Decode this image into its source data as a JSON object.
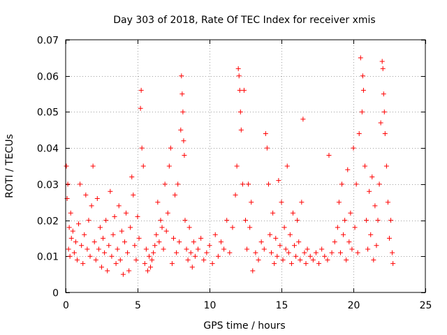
{
  "chart_data": {
    "type": "scatter",
    "title": "Day 303 of 2018, Rate Of TEC Index for receiver xmis",
    "xlabel": "GPS time / hours",
    "ylabel": "ROTI / TECUs",
    "xlim": [
      0,
      25
    ],
    "ylim": [
      0,
      0.07
    ],
    "xticks": [
      0,
      5,
      10,
      15,
      20,
      25
    ],
    "xtick_labels": [
      "0",
      "5",
      "10",
      "15",
      "20",
      "25"
    ],
    "yticks": [
      0,
      0.01,
      0.02,
      0.03,
      0.04,
      0.05,
      0.06,
      0.07
    ],
    "ytick_labels": [
      "0",
      "0.01",
      "0.02",
      "0.03",
      "0.04",
      "0.05",
      "0.06",
      "0.07"
    ],
    "grid": true,
    "marker": "plus",
    "color": "#ff0000",
    "series": [
      {
        "points": [
          [
            0.05,
            0.035
          ],
          [
            0.1,
            0.026
          ],
          [
            0.15,
            0.03
          ],
          [
            0.2,
            0.012
          ],
          [
            0.25,
            0.018
          ],
          [
            0.3,
            0.01
          ],
          [
            0.35,
            0.022
          ],
          [
            0.4,
            0.015
          ],
          [
            0.5,
            0.017
          ],
          [
            0.6,
            0.011
          ],
          [
            0.7,
            0.014
          ],
          [
            0.8,
            0.009
          ],
          [
            0.9,
            0.019
          ],
          [
            1.0,
            0.03
          ],
          [
            1.1,
            0.013
          ],
          [
            1.2,
            0.008
          ],
          [
            1.3,
            0.016
          ],
          [
            1.4,
            0.027
          ],
          [
            1.5,
            0.012
          ],
          [
            1.6,
            0.02
          ],
          [
            1.7,
            0.01
          ],
          [
            1.8,
            0.024
          ],
          [
            1.9,
            0.035
          ],
          [
            2.0,
            0.014
          ],
          [
            2.1,
            0.009
          ],
          [
            2.2,
            0.026
          ],
          [
            2.3,
            0.012
          ],
          [
            2.4,
            0.018
          ],
          [
            2.5,
            0.007
          ],
          [
            2.6,
            0.015
          ],
          [
            2.7,
            0.011
          ],
          [
            2.8,
            0.02
          ],
          [
            2.9,
            0.006
          ],
          [
            3.0,
            0.013
          ],
          [
            3.1,
            0.028
          ],
          [
            3.2,
            0.01
          ],
          [
            3.3,
            0.016
          ],
          [
            3.4,
            0.021
          ],
          [
            3.5,
            0.008
          ],
          [
            3.6,
            0.012
          ],
          [
            3.7,
            0.024
          ],
          [
            3.8,
            0.009
          ],
          [
            3.9,
            0.017
          ],
          [
            4.0,
            0.005
          ],
          [
            4.1,
            0.014
          ],
          [
            4.2,
            0.022
          ],
          [
            4.3,
            0.011
          ],
          [
            4.4,
            0.006
          ],
          [
            4.5,
            0.018
          ],
          [
            4.6,
            0.032
          ],
          [
            4.7,
            0.027
          ],
          [
            4.8,
            0.013
          ],
          [
            4.9,
            0.009
          ],
          [
            5.0,
            0.021
          ],
          [
            5.1,
            0.015
          ],
          [
            5.2,
            0.051
          ],
          [
            5.25,
            0.056
          ],
          [
            5.3,
            0.04
          ],
          [
            5.4,
            0.035
          ],
          [
            5.5,
            0.008
          ],
          [
            5.6,
            0.012
          ],
          [
            5.7,
            0.006
          ],
          [
            5.8,
            0.01
          ],
          [
            5.9,
            0.007
          ],
          [
            6.0,
            0.009
          ],
          [
            6.1,
            0.011
          ],
          [
            6.2,
            0.013
          ],
          [
            6.3,
            0.016
          ],
          [
            6.4,
            0.025
          ],
          [
            6.5,
            0.014
          ],
          [
            6.6,
            0.02
          ],
          [
            6.7,
            0.018
          ],
          [
            6.8,
            0.012
          ],
          [
            6.9,
            0.03
          ],
          [
            7.0,
            0.017
          ],
          [
            7.1,
            0.022
          ],
          [
            7.2,
            0.035
          ],
          [
            7.3,
            0.04
          ],
          [
            7.4,
            0.008
          ],
          [
            7.5,
            0.015
          ],
          [
            7.6,
            0.027
          ],
          [
            7.7,
            0.011
          ],
          [
            7.8,
            0.03
          ],
          [
            7.9,
            0.014
          ],
          [
            8.0,
            0.045
          ],
          [
            8.05,
            0.06
          ],
          [
            8.1,
            0.055
          ],
          [
            8.15,
            0.05
          ],
          [
            8.2,
            0.042
          ],
          [
            8.25,
            0.038
          ],
          [
            8.3,
            0.02
          ],
          [
            8.4,
            0.012
          ],
          [
            8.5,
            0.009
          ],
          [
            8.6,
            0.018
          ],
          [
            8.7,
            0.011
          ],
          [
            8.8,
            0.007
          ],
          [
            8.9,
            0.014
          ],
          [
            9.0,
            0.01
          ],
          [
            9.2,
            0.012
          ],
          [
            9.4,
            0.015
          ],
          [
            9.6,
            0.009
          ],
          [
            9.8,
            0.011
          ],
          [
            10.0,
            0.013
          ],
          [
            10.2,
            0.008
          ],
          [
            10.4,
            0.016
          ],
          [
            10.6,
            0.01
          ],
          [
            10.8,
            0.014
          ],
          [
            11.0,
            0.012
          ],
          [
            11.2,
            0.02
          ],
          [
            11.4,
            0.011
          ],
          [
            11.6,
            0.018
          ],
          [
            11.8,
            0.027
          ],
          [
            11.9,
            0.035
          ],
          [
            12.0,
            0.062
          ],
          [
            12.05,
            0.06
          ],
          [
            12.1,
            0.056
          ],
          [
            12.15,
            0.05
          ],
          [
            12.2,
            0.045
          ],
          [
            12.3,
            0.03
          ],
          [
            12.4,
            0.056
          ],
          [
            12.5,
            0.02
          ],
          [
            12.6,
            0.012
          ],
          [
            12.7,
            0.03
          ],
          [
            12.8,
            0.018
          ],
          [
            12.9,
            0.025
          ],
          [
            13.0,
            0.006
          ],
          [
            13.2,
            0.011
          ],
          [
            13.4,
            0.009
          ],
          [
            13.6,
            0.014
          ],
          [
            13.8,
            0.012
          ],
          [
            13.9,
            0.044
          ],
          [
            14.0,
            0.04
          ],
          [
            14.1,
            0.03
          ],
          [
            14.2,
            0.016
          ],
          [
            14.3,
            0.011
          ],
          [
            14.4,
            0.022
          ],
          [
            14.5,
            0.008
          ],
          [
            14.6,
            0.015
          ],
          [
            14.7,
            0.01
          ],
          [
            14.8,
            0.031
          ],
          [
            14.9,
            0.013
          ],
          [
            15.0,
            0.025
          ],
          [
            15.1,
            0.009
          ],
          [
            15.2,
            0.018
          ],
          [
            15.3,
            0.012
          ],
          [
            15.4,
            0.035
          ],
          [
            15.5,
            0.011
          ],
          [
            15.6,
            0.016
          ],
          [
            15.7,
            0.008
          ],
          [
            15.8,
            0.022
          ],
          [
            15.9,
            0.013
          ],
          [
            16.0,
            0.01
          ],
          [
            16.1,
            0.02
          ],
          [
            16.2,
            0.014
          ],
          [
            16.3,
            0.009
          ],
          [
            16.4,
            0.025
          ],
          [
            16.5,
            0.048
          ],
          [
            16.6,
            0.011
          ],
          [
            16.7,
            0.008
          ],
          [
            16.8,
            0.012
          ],
          [
            17.0,
            0.01
          ],
          [
            17.2,
            0.009
          ],
          [
            17.4,
            0.011
          ],
          [
            17.6,
            0.008
          ],
          [
            17.8,
            0.012
          ],
          [
            18.0,
            0.01
          ],
          [
            18.2,
            0.009
          ],
          [
            18.3,
            0.038
          ],
          [
            18.5,
            0.011
          ],
          [
            18.7,
            0.014
          ],
          [
            18.9,
            0.018
          ],
          [
            19.0,
            0.025
          ],
          [
            19.1,
            0.011
          ],
          [
            19.2,
            0.03
          ],
          [
            19.3,
            0.016
          ],
          [
            19.4,
            0.02
          ],
          [
            19.5,
            0.009
          ],
          [
            19.6,
            0.034
          ],
          [
            19.7,
            0.014
          ],
          [
            19.8,
            0.022
          ],
          [
            19.9,
            0.012
          ],
          [
            20.0,
            0.04
          ],
          [
            20.1,
            0.018
          ],
          [
            20.2,
            0.03
          ],
          [
            20.3,
            0.011
          ],
          [
            20.4,
            0.044
          ],
          [
            20.5,
            0.065
          ],
          [
            20.6,
            0.05
          ],
          [
            20.65,
            0.06
          ],
          [
            20.7,
            0.056
          ],
          [
            20.8,
            0.035
          ],
          [
            20.9,
            0.02
          ],
          [
            21.0,
            0.012
          ],
          [
            21.1,
            0.028
          ],
          [
            21.2,
            0.016
          ],
          [
            21.3,
            0.032
          ],
          [
            21.4,
            0.009
          ],
          [
            21.5,
            0.024
          ],
          [
            21.6,
            0.013
          ],
          [
            21.7,
            0.02
          ],
          [
            21.8,
            0.03
          ],
          [
            21.9,
            0.047
          ],
          [
            22.0,
            0.064
          ],
          [
            22.05,
            0.062
          ],
          [
            22.1,
            0.055
          ],
          [
            22.15,
            0.05
          ],
          [
            22.2,
            0.044
          ],
          [
            22.3,
            0.035
          ],
          [
            22.4,
            0.025
          ],
          [
            22.5,
            0.015
          ],
          [
            22.6,
            0.02
          ],
          [
            22.7,
            0.011
          ],
          [
            22.75,
            0.008
          ]
        ]
      }
    ]
  }
}
